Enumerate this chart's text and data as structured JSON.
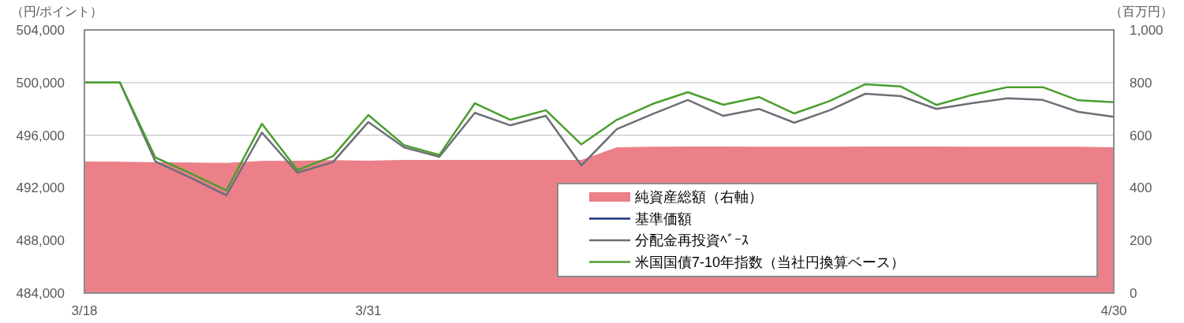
{
  "chart_data": {
    "type": "line",
    "ylabel": "（円/ポイント）",
    "y2label": "（百万円）",
    "categories": [
      "3/18",
      null,
      null,
      null,
      null,
      null,
      null,
      null,
      "3/31",
      null,
      null,
      null,
      null,
      null,
      null,
      null,
      null,
      null,
      null,
      null,
      null,
      null,
      null,
      null,
      null,
      null,
      null,
      null,
      null,
      "4/30"
    ],
    "series": [
      {
        "name": "純資産総額（右軸）",
        "type": "area",
        "axis": "y2",
        "color": "#eb8089",
        "values": [
          500,
          499,
          497,
          496,
          495,
          502,
          503,
          505,
          503,
          506,
          506,
          506,
          506,
          506,
          506,
          554,
          556,
          557,
          557,
          556,
          556,
          556,
          557,
          557,
          557,
          556,
          556,
          556,
          556,
          554
        ]
      },
      {
        "name": "基準価額",
        "color": "#1f2f7a",
        "values": [
          null,
          null,
          null,
          null,
          null,
          null,
          null,
          null,
          null,
          null,
          null,
          null,
          null,
          null,
          null,
          null,
          null,
          null,
          null,
          null,
          null,
          null,
          null,
          null,
          null,
          null,
          null,
          null,
          null,
          null
        ]
      },
      {
        "name": "分配金再投資ﾍﾞｰｽ",
        "color": "#6e6e78",
        "values": [
          500000,
          500000,
          494000,
          492750,
          491430,
          496200,
          493150,
          493950,
          497000,
          495080,
          494360,
          497700,
          496750,
          497470,
          493700,
          496460,
          497600,
          498680,
          497470,
          498000,
          496950,
          497900,
          499150,
          498970,
          498000,
          498430,
          498800,
          498680,
          497770,
          497400
        ]
      },
      {
        "name": "米国国債7-10年指数（当社円換算ベース）",
        "color": "#4a9e2f",
        "values": [
          500000,
          500000,
          494300,
          493100,
          491800,
          496870,
          493350,
          494400,
          497530,
          495250,
          494500,
          498430,
          497170,
          497900,
          495300,
          497170,
          498370,
          499270,
          498310,
          498900,
          497650,
          498600,
          499870,
          499700,
          498300,
          499050,
          499650,
          499650,
          498650,
          498500
        ]
      }
    ],
    "ylim": [
      484000,
      504000
    ],
    "yticks": [
      {
        "value": 484000,
        "label": "484,000"
      },
      {
        "value": 488000,
        "label": "488,000"
      },
      {
        "value": 492000,
        "label": "492,000"
      },
      {
        "value": 496000,
        "label": "496,000"
      },
      {
        "value": 500000,
        "label": "500,000"
      },
      {
        "value": 504000,
        "label": "504,000"
      }
    ],
    "y2lim": [
      0,
      1000
    ],
    "y2ticks": [
      0,
      200,
      400,
      600,
      800,
      {
        "value": 1000,
        "label": "1,000"
      }
    ],
    "grid": "y",
    "legend": "bottom right"
  }
}
